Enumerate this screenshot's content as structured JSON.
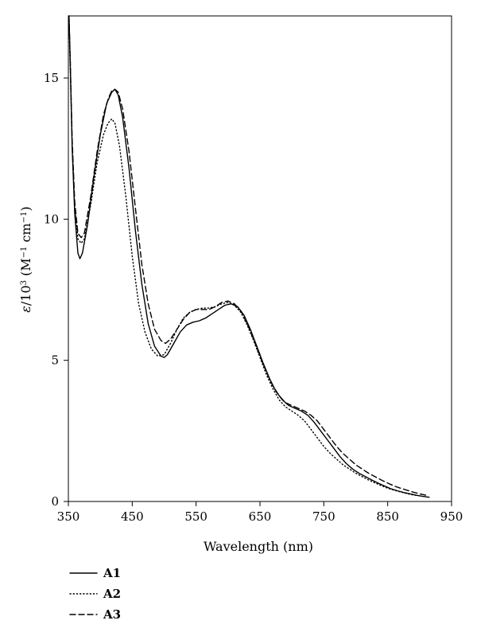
{
  "chart_data": {
    "type": "line",
    "title": "",
    "xlabel": "Wavelength (nm)",
    "ylabel_parts": {
      "epsilon": "ε",
      "over": "/10",
      "exp3": "3",
      "open": " (M",
      "neg1a": "−1",
      "cm": " cm",
      "neg1b": "−1",
      "close": ")"
    },
    "xlim": [
      350,
      950
    ],
    "ylim": [
      0,
      17.2
    ],
    "x_ticks": [
      350,
      450,
      550,
      650,
      750,
      850,
      950
    ],
    "x_tick_labels": [
      "350",
      "450",
      "550",
      "650",
      "750",
      "850",
      "950"
    ],
    "y_ticks": [
      0,
      5,
      10,
      15
    ],
    "y_tick_labels": [
      "0",
      "5",
      "10",
      "15"
    ],
    "grid": false,
    "legend_position": "bottom-left",
    "series": [
      {
        "name": "A1",
        "style": "solid",
        "points": [
          [
            351,
            17.2
          ],
          [
            353,
            15.5
          ],
          [
            356,
            12.5
          ],
          [
            360,
            10.2
          ],
          [
            365,
            8.8
          ],
          [
            368,
            8.6
          ],
          [
            372,
            8.8
          ],
          [
            380,
            9.8
          ],
          [
            390,
            11.5
          ],
          [
            400,
            13.0
          ],
          [
            410,
            14.1
          ],
          [
            418,
            14.5
          ],
          [
            423,
            14.6
          ],
          [
            428,
            14.4
          ],
          [
            435,
            13.6
          ],
          [
            445,
            11.8
          ],
          [
            455,
            9.6
          ],
          [
            465,
            7.7
          ],
          [
            475,
            6.3
          ],
          [
            485,
            5.5
          ],
          [
            495,
            5.15
          ],
          [
            500,
            5.1
          ],
          [
            505,
            5.2
          ],
          [
            515,
            5.6
          ],
          [
            525,
            6.0
          ],
          [
            535,
            6.25
          ],
          [
            545,
            6.35
          ],
          [
            555,
            6.4
          ],
          [
            565,
            6.5
          ],
          [
            575,
            6.65
          ],
          [
            585,
            6.8
          ],
          [
            595,
            6.95
          ],
          [
            605,
            7.0
          ],
          [
            615,
            6.9
          ],
          [
            625,
            6.6
          ],
          [
            635,
            6.1
          ],
          [
            645,
            5.5
          ],
          [
            655,
            4.9
          ],
          [
            665,
            4.35
          ],
          [
            675,
            3.9
          ],
          [
            685,
            3.6
          ],
          [
            695,
            3.4
          ],
          [
            705,
            3.3
          ],
          [
            715,
            3.2
          ],
          [
            725,
            3.05
          ],
          [
            735,
            2.8
          ],
          [
            745,
            2.5
          ],
          [
            755,
            2.2
          ],
          [
            765,
            1.9
          ],
          [
            775,
            1.6
          ],
          [
            785,
            1.35
          ],
          [
            795,
            1.15
          ],
          [
            805,
            1.0
          ],
          [
            815,
            0.88
          ],
          [
            825,
            0.76
          ],
          [
            835,
            0.65
          ],
          [
            845,
            0.55
          ],
          [
            855,
            0.45
          ],
          [
            865,
            0.38
          ],
          [
            875,
            0.32
          ],
          [
            885,
            0.27
          ],
          [
            895,
            0.22
          ],
          [
            905,
            0.18
          ],
          [
            915,
            0.15
          ]
        ]
      },
      {
        "name": "A2",
        "style": "dotted",
        "points": [
          [
            351,
            17.0
          ],
          [
            353,
            15.3
          ],
          [
            356,
            12.6
          ],
          [
            360,
            10.4
          ],
          [
            365,
            9.3
          ],
          [
            370,
            9.15
          ],
          [
            375,
            9.3
          ],
          [
            385,
            10.5
          ],
          [
            395,
            12.0
          ],
          [
            405,
            13.0
          ],
          [
            412,
            13.4
          ],
          [
            418,
            13.55
          ],
          [
            423,
            13.4
          ],
          [
            430,
            12.6
          ],
          [
            440,
            10.8
          ],
          [
            450,
            8.7
          ],
          [
            460,
            7.0
          ],
          [
            470,
            6.0
          ],
          [
            480,
            5.4
          ],
          [
            490,
            5.15
          ],
          [
            500,
            5.2
          ],
          [
            510,
            5.6
          ],
          [
            520,
            6.1
          ],
          [
            530,
            6.5
          ],
          [
            540,
            6.7
          ],
          [
            550,
            6.8
          ],
          [
            560,
            6.85
          ],
          [
            570,
            6.85
          ],
          [
            580,
            6.9
          ],
          [
            590,
            7.0
          ],
          [
            600,
            7.05
          ],
          [
            610,
            6.95
          ],
          [
            620,
            6.7
          ],
          [
            630,
            6.25
          ],
          [
            640,
            5.7
          ],
          [
            650,
            5.1
          ],
          [
            660,
            4.5
          ],
          [
            670,
            4.0
          ],
          [
            680,
            3.6
          ],
          [
            690,
            3.35
          ],
          [
            700,
            3.2
          ],
          [
            710,
            3.05
          ],
          [
            720,
            2.85
          ],
          [
            730,
            2.55
          ],
          [
            740,
            2.25
          ],
          [
            750,
            1.95
          ],
          [
            760,
            1.7
          ],
          [
            770,
            1.5
          ],
          [
            780,
            1.3
          ],
          [
            790,
            1.15
          ],
          [
            800,
            1.0
          ],
          [
            810,
            0.88
          ],
          [
            820,
            0.76
          ],
          [
            830,
            0.66
          ],
          [
            840,
            0.56
          ],
          [
            850,
            0.47
          ],
          [
            860,
            0.4
          ],
          [
            870,
            0.34
          ],
          [
            880,
            0.28
          ],
          [
            890,
            0.23
          ],
          [
            900,
            0.2
          ]
        ]
      },
      {
        "name": "A3",
        "style": "dashed",
        "points": [
          [
            351,
            17.2
          ],
          [
            353,
            15.6
          ],
          [
            356,
            12.8
          ],
          [
            360,
            10.6
          ],
          [
            365,
            9.5
          ],
          [
            370,
            9.35
          ],
          [
            375,
            9.5
          ],
          [
            385,
            10.8
          ],
          [
            395,
            12.4
          ],
          [
            405,
            13.7
          ],
          [
            413,
            14.3
          ],
          [
            418,
            14.55
          ],
          [
            423,
            14.6
          ],
          [
            428,
            14.5
          ],
          [
            435,
            13.9
          ],
          [
            445,
            12.4
          ],
          [
            455,
            10.4
          ],
          [
            465,
            8.4
          ],
          [
            475,
            7.0
          ],
          [
            485,
            6.1
          ],
          [
            495,
            5.7
          ],
          [
            502,
            5.6
          ],
          [
            510,
            5.75
          ],
          [
            520,
            6.1
          ],
          [
            530,
            6.45
          ],
          [
            540,
            6.7
          ],
          [
            550,
            6.8
          ],
          [
            560,
            6.8
          ],
          [
            570,
            6.8
          ],
          [
            580,
            6.9
          ],
          [
            590,
            7.05
          ],
          [
            600,
            7.1
          ],
          [
            610,
            7.0
          ],
          [
            620,
            6.75
          ],
          [
            630,
            6.3
          ],
          [
            640,
            5.75
          ],
          [
            650,
            5.15
          ],
          [
            660,
            4.6
          ],
          [
            670,
            4.1
          ],
          [
            680,
            3.75
          ],
          [
            690,
            3.5
          ],
          [
            700,
            3.4
          ],
          [
            710,
            3.3
          ],
          [
            720,
            3.2
          ],
          [
            730,
            3.05
          ],
          [
            740,
            2.85
          ],
          [
            750,
            2.55
          ],
          [
            760,
            2.25
          ],
          [
            770,
            1.95
          ],
          [
            780,
            1.7
          ],
          [
            790,
            1.5
          ],
          [
            800,
            1.3
          ],
          [
            810,
            1.15
          ],
          [
            820,
            1.0
          ],
          [
            830,
            0.88
          ],
          [
            840,
            0.76
          ],
          [
            850,
            0.65
          ],
          [
            860,
            0.55
          ],
          [
            870,
            0.47
          ],
          [
            880,
            0.4
          ],
          [
            890,
            0.33
          ],
          [
            900,
            0.27
          ],
          [
            910,
            0.22
          ]
        ]
      }
    ]
  }
}
